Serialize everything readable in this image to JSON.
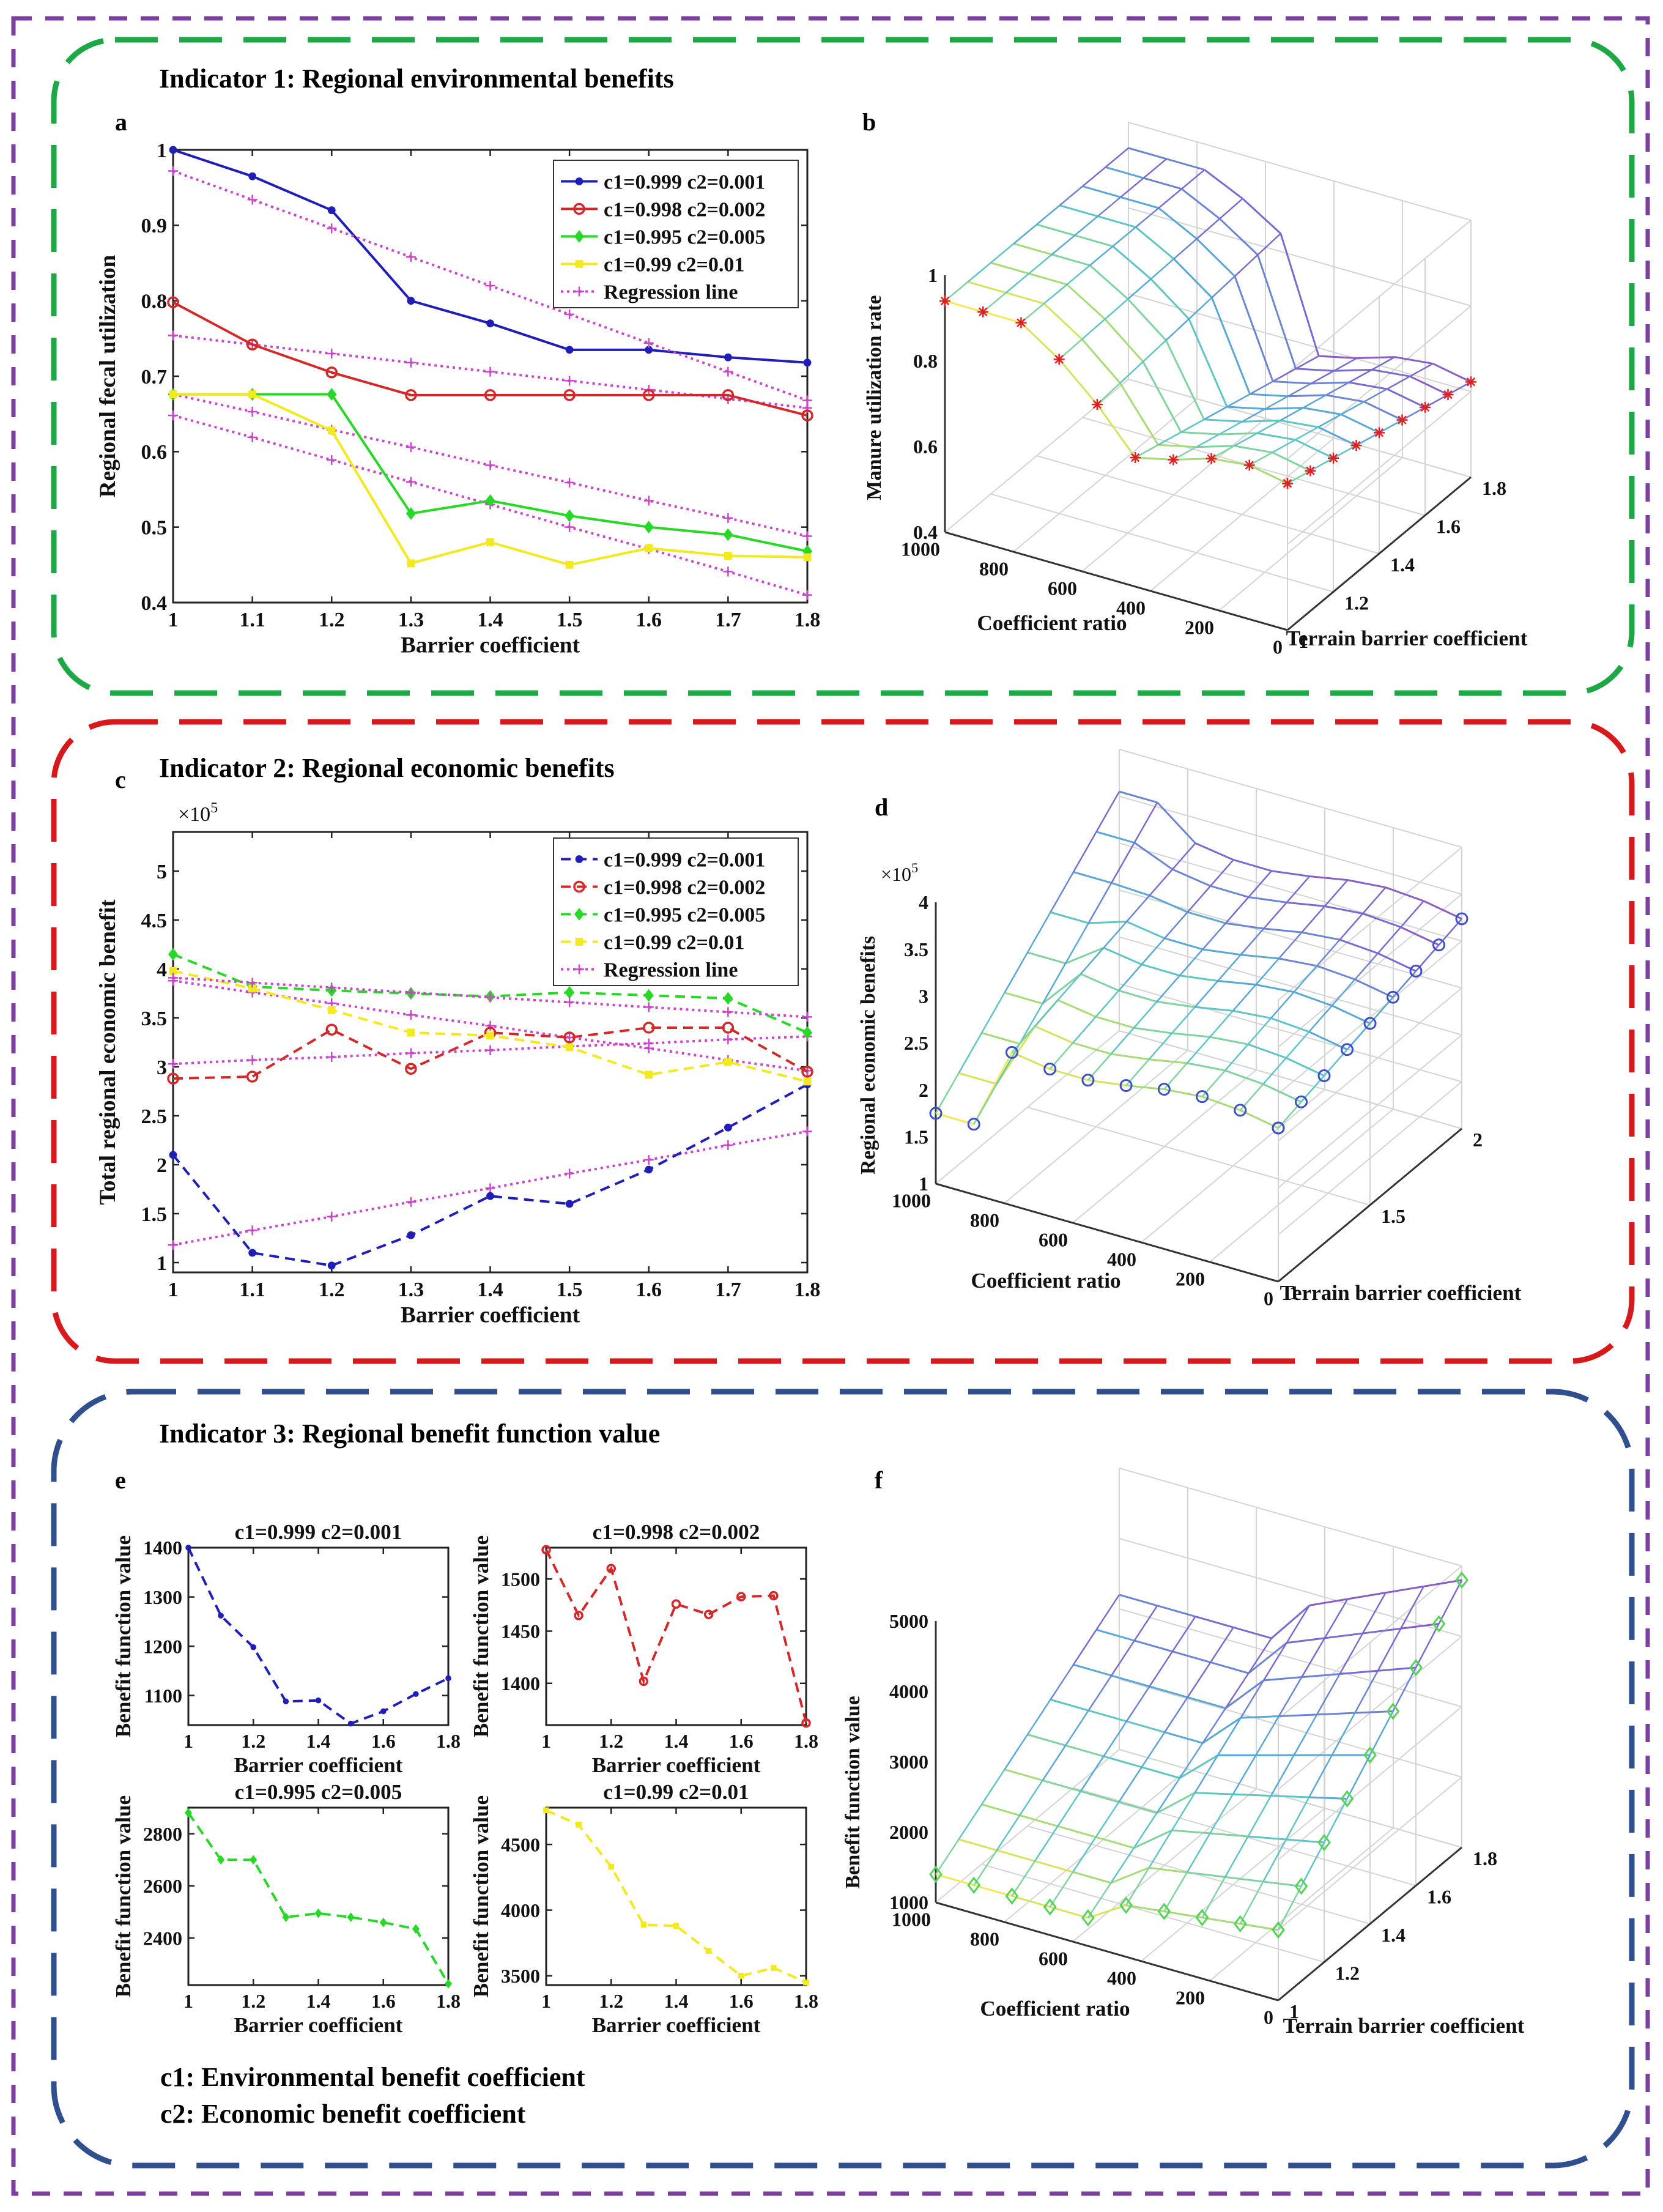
{
  "colors": {
    "blue": "#1f1fb8",
    "red": "#d22a2a",
    "green": "#27d827",
    "yellow": "#f2ea1f",
    "magenta": "#cc44cc",
    "purple_border": "#7b3fa0",
    "green_border": "#1da845",
    "red_border": "#d7191c",
    "blue_border": "#2f4f8f"
  },
  "sections": {
    "s1": "Indicator 1: Regional environmental benefits",
    "s2": "Indicator 2: Regional economic benefits",
    "s3": "Indicator 3: Regional benefit function value"
  },
  "panel_labels": {
    "a": "a",
    "b": "b",
    "c": "c",
    "d": "d",
    "e": "e",
    "f": "f"
  },
  "notes": {
    "c1": "c1: Environmental benefit coefficient",
    "c2": "c2: Economic benefit coefficient"
  },
  "chart_data": [
    {
      "id": "a",
      "type": "line",
      "ylabel": "Regional fecal utilization",
      "xlabel": "Barrier coefficient",
      "x": [
        1,
        1.1,
        1.2,
        1.3,
        1.4,
        1.5,
        1.6,
        1.7,
        1.8
      ],
      "xticks": [
        "1",
        "1.1",
        "1.2",
        "1.3",
        "1.4",
        "1.5",
        "1.6",
        "1.7",
        "1.8"
      ],
      "xlim": [
        1,
        1.8
      ],
      "ylim": [
        0.4,
        1
      ],
      "yticks": [
        "0.4",
        "0.5",
        "0.6",
        "0.7",
        "0.8",
        "0.9",
        "1"
      ],
      "legend_position": "top-right",
      "series": [
        {
          "name": "c1=0.999  c2=0.001",
          "color": "blue",
          "style": "solid",
          "marker": "dot",
          "values": [
            1.0,
            0.965,
            0.92,
            0.8,
            0.77,
            0.735,
            0.735,
            0.725,
            0.718
          ]
        },
        {
          "name": "c1=0.998  c2=0.002",
          "color": "red",
          "style": "solid",
          "marker": "circle",
          "values": [
            0.798,
            0.742,
            0.705,
            0.675,
            0.675,
            0.675,
            0.675,
            0.675,
            0.648
          ]
        },
        {
          "name": "c1=0.995  c2=0.005",
          "color": "green",
          "style": "solid",
          "marker": "diamond",
          "values": [
            0.676,
            0.676,
            0.676,
            0.518,
            0.535,
            0.515,
            0.5,
            0.49,
            0.468
          ]
        },
        {
          "name": "c1=0.99  c2=0.01",
          "color": "yellow",
          "style": "solid",
          "marker": "square",
          "values": [
            0.676,
            0.676,
            0.628,
            0.452,
            0.48,
            0.45,
            0.472,
            0.462,
            0.46
          ]
        },
        {
          "name": "Regression line",
          "color": "magenta",
          "style": "dotted",
          "marker": "plus",
          "values": [
            0.972,
            0.934,
            0.896,
            0.858,
            0.82,
            0.782,
            0.744,
            0.706,
            0.668
          ]
        }
      ],
      "extra_regressions": [
        [
          0.754,
          0.742,
          0.73,
          0.718,
          0.706,
          0.694,
          0.682,
          0.67,
          0.658
        ],
        [
          0.676,
          0.653,
          0.629,
          0.606,
          0.582,
          0.559,
          0.535,
          0.512,
          0.488
        ],
        [
          0.648,
          0.619,
          0.589,
          0.56,
          0.53,
          0.5,
          0.471,
          0.441,
          0.41
        ]
      ]
    },
    {
      "id": "b",
      "type": "line3d",
      "zlabel": "Manure utilization rate",
      "xlabel": "Coefficient ratio",
      "ylabel": "Terrain barrier coefficient",
      "zticks": [
        "0.4",
        "0.6",
        "0.8",
        "1"
      ],
      "xticks": [
        "1000",
        "800",
        "600",
        "400",
        "200",
        "0"
      ],
      "yticks": [
        "1",
        "1.2",
        "1.4",
        "1.6",
        "1.8"
      ]
    },
    {
      "id": "c",
      "type": "line",
      "ylabel": "Total regional economic benefit",
      "xlabel": "Barrier coefficient",
      "y_multiplier": "×10",
      "y_multiplier_exp": "5",
      "x": [
        1,
        1.1,
        1.2,
        1.3,
        1.4,
        1.5,
        1.6,
        1.7,
        1.8
      ],
      "xticks": [
        "1",
        "1.1",
        "1.2",
        "1.3",
        "1.4",
        "1.5",
        "1.6",
        "1.7",
        "1.8"
      ],
      "xlim": [
        1,
        1.8
      ],
      "ylim": [
        0.9,
        5.4
      ],
      "yticks": [
        "1",
        "1.5",
        "2",
        "2.5",
        "3",
        "3.5",
        "4",
        "4.5",
        "5"
      ],
      "legend_position": "top-right",
      "series": [
        {
          "name": "c1=0.999  c2=0.001",
          "color": "blue",
          "style": "dashed",
          "marker": "dot",
          "values": [
            2.1,
            1.1,
            0.97,
            1.28,
            1.68,
            1.6,
            1.95,
            2.38,
            2.82
          ]
        },
        {
          "name": "c1=0.998  c2=0.002",
          "color": "red",
          "style": "dashed",
          "marker": "circle",
          "values": [
            2.88,
            2.9,
            3.38,
            2.98,
            3.35,
            3.3,
            3.4,
            3.4,
            2.95
          ]
        },
        {
          "name": "c1=0.995  c2=0.005",
          "color": "green",
          "style": "dashed",
          "marker": "diamond",
          "values": [
            4.15,
            3.82,
            3.78,
            3.75,
            3.72,
            3.76,
            3.73,
            3.7,
            3.35
          ]
        },
        {
          "name": "c1=0.99 c2=0.01",
          "color": "yellow",
          "style": "dashed",
          "marker": "square",
          "values": [
            3.98,
            3.8,
            3.58,
            3.35,
            3.32,
            3.2,
            2.92,
            3.05,
            2.85
          ]
        },
        {
          "name": "Regression line",
          "color": "magenta",
          "style": "dotted",
          "marker": "plus",
          "values": [
            3.91,
            3.86,
            3.81,
            3.76,
            3.71,
            3.66,
            3.61,
            3.56,
            3.51
          ]
        }
      ],
      "extra_regressions": [
        [
          3.03,
          3.07,
          3.1,
          3.14,
          3.17,
          3.21,
          3.24,
          3.28,
          3.31
        ],
        [
          3.88,
          3.76,
          3.65,
          3.53,
          3.42,
          3.3,
          3.19,
          3.07,
          2.96
        ],
        [
          1.18,
          1.33,
          1.47,
          1.62,
          1.76,
          1.91,
          2.05,
          2.2,
          2.34
        ]
      ]
    },
    {
      "id": "d",
      "type": "line3d",
      "zlabel": "Regional economic benefits",
      "z_multiplier": "×10",
      "z_multiplier_exp": "5",
      "xlabel": "Coefficient ratio",
      "ylabel": "Terrain barrier coefficient",
      "zticks": [
        "1",
        "1.5",
        "2",
        "2.5",
        "3",
        "3.5",
        "4"
      ],
      "xticks": [
        "1000",
        "800",
        "600",
        "400",
        "200",
        "0"
      ],
      "yticks": [
        "1",
        "1.5",
        "2"
      ]
    },
    {
      "id": "e1",
      "type": "line",
      "title": "c1=0.999  c2=0.001",
      "ylabel": "Benefit function value",
      "xlabel": "Barrier coefficient",
      "color": "blue",
      "marker": "dot",
      "x": [
        1,
        1.1,
        1.2,
        1.3,
        1.4,
        1.5,
        1.6,
        1.7,
        1.8
      ],
      "xticks": [
        "1",
        "1.2",
        "1.4",
        "1.6",
        "1.8"
      ],
      "ylim": [
        1040,
        1400
      ],
      "yticks": [
        "1100",
        "1200",
        "1300",
        "1400"
      ],
      "values": [
        1400,
        1262,
        1198,
        1088,
        1090,
        1043,
        1068,
        1103,
        1135
      ]
    },
    {
      "id": "e2",
      "type": "line",
      "title": "c1=0.998  c2=0.002",
      "ylabel": "Benefit function value",
      "xlabel": "Barrier coefficient",
      "color": "red",
      "marker": "circle",
      "x": [
        1,
        1.1,
        1.2,
        1.3,
        1.4,
        1.5,
        1.6,
        1.7,
        1.8
      ],
      "xticks": [
        "1",
        "1.2",
        "1.4",
        "1.6",
        "1.8"
      ],
      "ylim": [
        1360,
        1530
      ],
      "yticks": [
        "1400",
        "1450",
        "1500"
      ],
      "values": [
        1528,
        1465,
        1510,
        1402,
        1476,
        1466,
        1483,
        1484,
        1362
      ]
    },
    {
      "id": "e3",
      "type": "line",
      "title": "c1=0.995  c2=0.005",
      "ylabel": "Benefit function value",
      "xlabel": "Barrier coefficient",
      "color": "green",
      "marker": "diamond",
      "x": [
        1,
        1.1,
        1.2,
        1.3,
        1.4,
        1.5,
        1.6,
        1.7,
        1.8
      ],
      "xticks": [
        "1",
        "1.2",
        "1.4",
        "1.6",
        "1.8"
      ],
      "ylim": [
        2220,
        2900
      ],
      "yticks": [
        "2400",
        "2600",
        "2800"
      ],
      "values": [
        2880,
        2700,
        2700,
        2480,
        2495,
        2480,
        2460,
        2435,
        2225
      ]
    },
    {
      "id": "e4",
      "type": "line",
      "title": "c1=0.99  c2=0.01",
      "ylabel": "Benefit function value",
      "xlabel": "Barrier coefficient",
      "color": "yellow",
      "marker": "square",
      "x": [
        1,
        1.1,
        1.2,
        1.3,
        1.4,
        1.5,
        1.6,
        1.7,
        1.8
      ],
      "xticks": [
        "1",
        "1.2",
        "1.4",
        "1.6",
        "1.8"
      ],
      "ylim": [
        3430,
        4780
      ],
      "yticks": [
        "3500",
        "4000",
        "4500"
      ],
      "values": [
        4760,
        4650,
        4330,
        3890,
        3880,
        3690,
        3500,
        3560,
        3450
      ]
    },
    {
      "id": "f",
      "type": "line3d",
      "zlabel": "Benefit function value",
      "xlabel": "Coefficient ratio",
      "ylabel": "Terrain barrier coefficient",
      "zticks": [
        "1000",
        "2000",
        "3000",
        "4000",
        "5000"
      ],
      "xticks": [
        "1000",
        "800",
        "600",
        "400",
        "200",
        "0"
      ],
      "yticks": [
        "1",
        "1.2",
        "1.4",
        "1.6",
        "1.8"
      ]
    }
  ]
}
